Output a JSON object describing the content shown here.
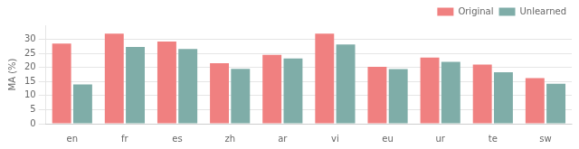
{
  "chart_data": {
    "type": "bar",
    "categories": [
      "en",
      "fr",
      "es",
      "zh",
      "ar",
      "vi",
      "eu",
      "ur",
      "te",
      "sw"
    ],
    "series": [
      {
        "name": "Original",
        "color": "#f08080",
        "values": [
          28.5,
          32.0,
          29.2,
          21.5,
          24.5,
          32.0,
          20.2,
          23.5,
          21.0,
          16.2
        ]
      },
      {
        "name": "Unlearned",
        "color": "#7fada8",
        "values": [
          14.0,
          27.3,
          26.6,
          19.5,
          23.2,
          28.2,
          19.4,
          22.0,
          18.3,
          14.2
        ]
      }
    ],
    "ylabel": "MA (%)",
    "ylim": [
      0,
      35
    ],
    "yticks": [
      0,
      5,
      10,
      15,
      20,
      25,
      30
    ],
    "grid": true,
    "legend": "upper right"
  }
}
